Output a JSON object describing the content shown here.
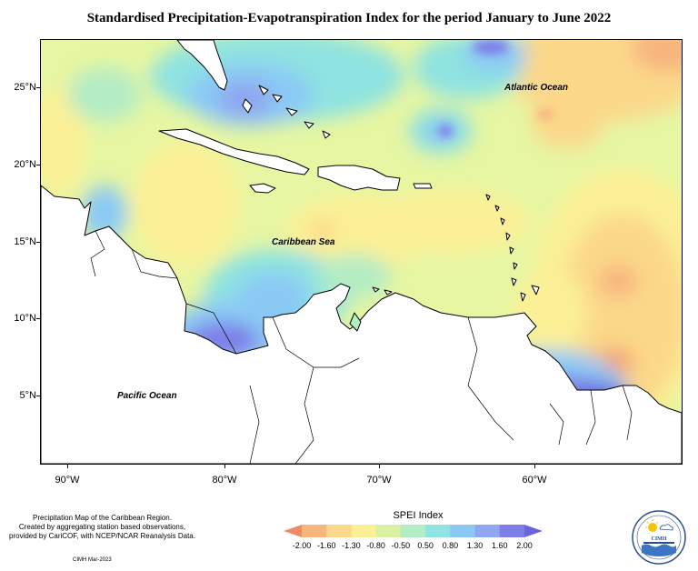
{
  "title": "Standardised Precipitation-Evapotranspiration Index for the period January to June 2022",
  "map": {
    "lat_labels": [
      "25°N",
      "20°N",
      "15°N",
      "10°N",
      "5°N"
    ],
    "lon_labels": [
      "90°W",
      "80°W",
      "70°W",
      "60°W"
    ],
    "ocean_labels": {
      "atlantic": "Atlantic Ocean",
      "caribbean": "Caribbean Sea",
      "pacific": "Pacific Ocean"
    }
  },
  "description": {
    "line1": "Precipitation Map of the Caribbean Region.",
    "line2": "Created by aggregating station based observations,",
    "line3": "provided by CariCOF, with NCEP/NCAR Reanalysis Data."
  },
  "credit": "CIMH Mar-2023",
  "legend": {
    "title": "SPEI Index",
    "labels": [
      "-2.00",
      "-1.60",
      "-1.30",
      "-0.80",
      "-0.50",
      "0.50",
      "0.80",
      "1.30",
      "1.60",
      "2.00"
    ],
    "colors": [
      "#f08a66",
      "#f7b57e",
      "#fbd88a",
      "#fbf096",
      "#d9f0a3",
      "#b4ecc4",
      "#8fe3e0",
      "#8bc9f5",
      "#8fa6f0",
      "#7d7ee8",
      "#6c64db"
    ]
  },
  "logo": {
    "text": "CIMH"
  }
}
